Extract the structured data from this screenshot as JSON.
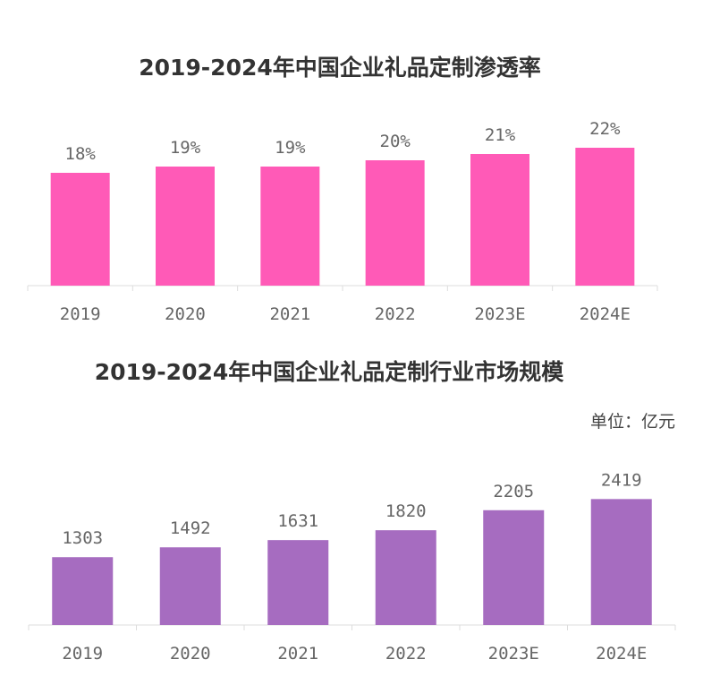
{
  "chart_data": [
    {
      "type": "bar",
      "title": "2019-2024年中国企业礼品定制渗透率",
      "categories": [
        "2019",
        "2020",
        "2021",
        "2022",
        "2023E",
        "2024E"
      ],
      "values": [
        18,
        19,
        19,
        20,
        21,
        22
      ],
      "data_labels": [
        "18%",
        "19%",
        "19%",
        "20%",
        "21%",
        "22%"
      ],
      "unit": "%",
      "color": "#FF5AB7",
      "ylim": [
        0,
        25
      ],
      "grid": false
    },
    {
      "type": "bar",
      "title": "2019-2024年中国企业礼品定制行业市场规模",
      "unit_label": "单位：亿元",
      "categories": [
        "2019",
        "2020",
        "2021",
        "2022",
        "2023E",
        "2024E"
      ],
      "values": [
        1303,
        1492,
        1631,
        1820,
        2205,
        2419
      ],
      "data_labels": [
        "1303",
        "1492",
        "1631",
        "1820",
        "2205",
        "2419"
      ],
      "color": "#A66CC0",
      "ylim": [
        0,
        2700
      ],
      "grid": false
    }
  ]
}
